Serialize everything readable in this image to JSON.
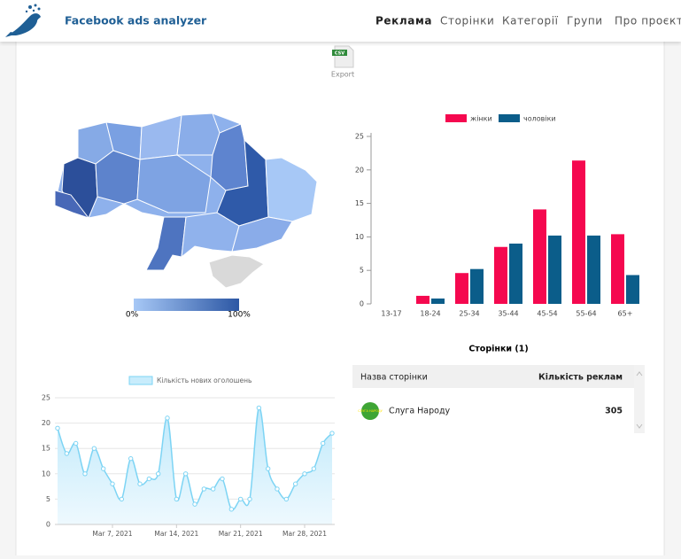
{
  "header": {
    "title": "Facebook ads analyzer",
    "nav": [
      "Реклама",
      "Сторінки",
      "Категорії",
      "Групи",
      "Про проєкт"
    ]
  },
  "export": {
    "badge": "CSV",
    "label": "Export"
  },
  "map": {
    "legend_min": "0%",
    "legend_max": "100%"
  },
  "pages_table": {
    "title": "Сторінки (1)",
    "columns": [
      "Назва сторінки",
      "Кількість реклам"
    ],
    "rows": [
      {
        "logo": "СЛУГА НАРОДУ",
        "name": "Слуга Народу",
        "count": 305
      }
    ]
  },
  "chart_data": [
    {
      "type": "bar",
      "categories": [
        "13-17",
        "18-24",
        "25-34",
        "35-44",
        "45-54",
        "55-64",
        "65+"
      ],
      "series": [
        {
          "name": "жінки",
          "color": "#f5084f",
          "values": [
            0,
            1.2,
            4.6,
            8.5,
            14.1,
            21.4,
            10.4
          ]
        },
        {
          "name": "чоловіки",
          "color": "#0b5d8a",
          "values": [
            0,
            0.8,
            5.2,
            9,
            10.2,
            10.2,
            4.3
          ]
        }
      ],
      "ylim": [
        0,
        25
      ],
      "yticks": [
        0,
        5,
        10,
        15,
        20,
        25
      ],
      "legend": "top"
    },
    {
      "type": "area",
      "x": [
        "2021-03-01",
        "2021-03-02",
        "2021-03-03",
        "2021-03-04",
        "2021-03-05",
        "2021-03-06",
        "2021-03-07",
        "2021-03-08",
        "2021-03-09",
        "2021-03-10",
        "2021-03-11",
        "2021-03-12",
        "2021-03-13",
        "2021-03-14",
        "2021-03-15",
        "2021-03-16",
        "2021-03-17",
        "2021-03-18",
        "2021-03-19",
        "2021-03-20",
        "2021-03-21",
        "2021-03-22",
        "2021-03-23",
        "2021-03-24",
        "2021-03-25",
        "2021-03-26",
        "2021-03-27",
        "2021-03-28",
        "2021-03-29",
        "2021-03-30",
        "2021-03-31"
      ],
      "series": [
        {
          "name": "Кількість нових оголошень",
          "color": "#7dd4f4",
          "values": [
            19,
            14,
            16,
            10,
            15,
            11,
            8,
            5,
            13,
            8,
            9,
            10,
            21,
            5,
            10,
            4,
            7,
            7,
            9,
            3,
            5,
            5,
            23,
            11,
            7,
            5,
            8,
            10,
            11,
            16,
            18
          ]
        }
      ],
      "xlim": [
        "2021-03-01",
        "2021-03-31"
      ],
      "xticks": [
        {
          "value": "2021-03-07",
          "label": "Mar 7, 2021"
        },
        {
          "value": "2021-03-14",
          "label": "Mar 14, 2021"
        },
        {
          "value": "2021-03-21",
          "label": "Mar 21, 2021"
        },
        {
          "value": "2021-03-28",
          "label": "Mar 28, 2021"
        }
      ],
      "ylim": [
        0,
        25
      ],
      "yticks": [
        0,
        5,
        10,
        15,
        20,
        25
      ],
      "grid": true,
      "legend": "top"
    }
  ]
}
